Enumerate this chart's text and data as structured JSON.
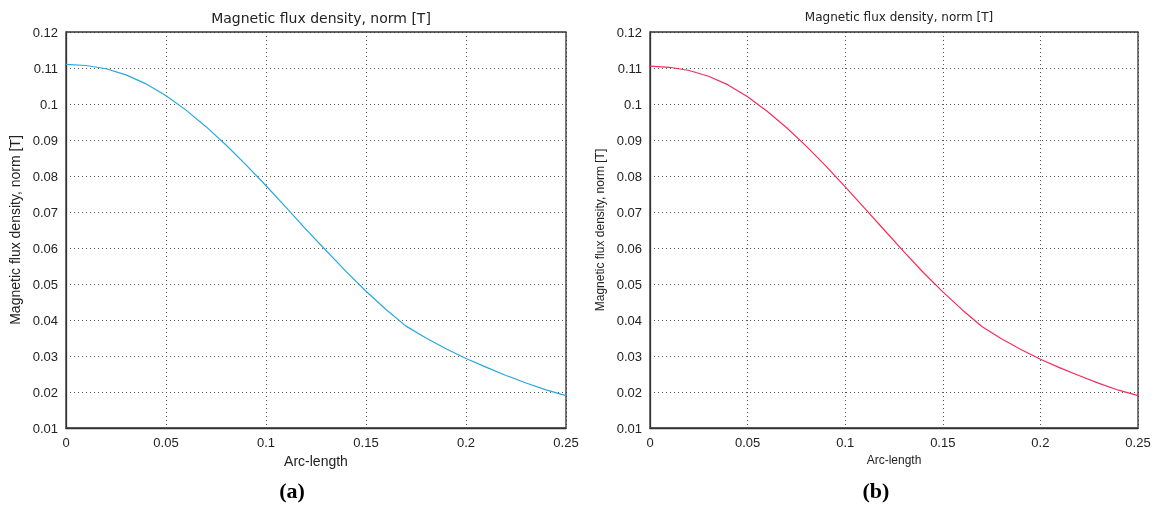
{
  "chart_data": [
    {
      "type": "line",
      "title": "Magnetic flux density, norm [T]",
      "xlabel": "Arc-length",
      "ylabel": "Magnetic flux density, norm [T]",
      "annotations": [
        "(a)"
      ],
      "x": [
        0,
        0.01,
        0.02,
        0.03,
        0.04,
        0.05,
        0.06,
        0.07,
        0.08,
        0.09,
        0.1,
        0.11,
        0.12,
        0.13,
        0.14,
        0.15,
        0.16,
        0.17,
        0.18,
        0.19,
        0.2,
        0.21,
        0.22,
        0.23,
        0.24,
        0.25
      ],
      "series": [
        {
          "color": "#2aa8d8",
          "values": [
            0.111,
            0.1107,
            0.1098,
            0.1081,
            0.1056,
            0.1023,
            0.0983,
            0.0937,
            0.0886,
            0.0831,
            0.0773,
            0.0713,
            0.0652,
            0.0593,
            0.0535,
            0.048,
            0.0429,
            0.0383,
            0.035,
            0.032,
            0.0293,
            0.0269,
            0.0246,
            0.0225,
            0.0206,
            0.019
          ]
        }
      ],
      "xlim": [
        0,
        0.25
      ],
      "ylim": [
        0.01,
        0.12
      ],
      "xticks": [
        0,
        0.05,
        0.1,
        0.15,
        0.2,
        0.25
      ],
      "yticks": [
        0.01,
        0.02,
        0.03,
        0.04,
        0.05,
        0.06,
        0.07,
        0.08,
        0.09,
        0.1,
        0.11,
        0.12
      ],
      "grid": true,
      "line_style": "solid",
      "marker": "none"
    },
    {
      "type": "line",
      "title": "Magnetic flux density, norm [T]",
      "xlabel": "Arc-length",
      "ylabel": "Magnetic flux density, norm [T]",
      "annotations": [
        "(b)"
      ],
      "x": [
        0,
        0.01,
        0.02,
        0.03,
        0.04,
        0.05,
        0.06,
        0.07,
        0.08,
        0.09,
        0.1,
        0.11,
        0.12,
        0.13,
        0.14,
        0.15,
        0.16,
        0.17,
        0.18,
        0.19,
        0.2,
        0.21,
        0.22,
        0.23,
        0.24,
        0.25
      ],
      "series": [
        {
          "color": "#f0305a",
          "values": [
            0.1105,
            0.1102,
            0.1093,
            0.1077,
            0.1053,
            0.102,
            0.098,
            0.0934,
            0.0883,
            0.0828,
            0.077,
            0.071,
            0.065,
            0.059,
            0.0532,
            0.0478,
            0.0428,
            0.0382,
            0.0348,
            0.0318,
            0.0291,
            0.0267,
            0.0245,
            0.0224,
            0.0205,
            0.019
          ]
        }
      ],
      "xlim": [
        0,
        0.25
      ],
      "ylim": [
        0.01,
        0.12
      ],
      "xticks": [
        0,
        0.05,
        0.1,
        0.15,
        0.2,
        0.25
      ],
      "yticks": [
        0.01,
        0.02,
        0.03,
        0.04,
        0.05,
        0.06,
        0.07,
        0.08,
        0.09,
        0.1,
        0.11,
        0.12
      ],
      "grid": true,
      "line_style": "solid",
      "marker": "none"
    }
  ]
}
